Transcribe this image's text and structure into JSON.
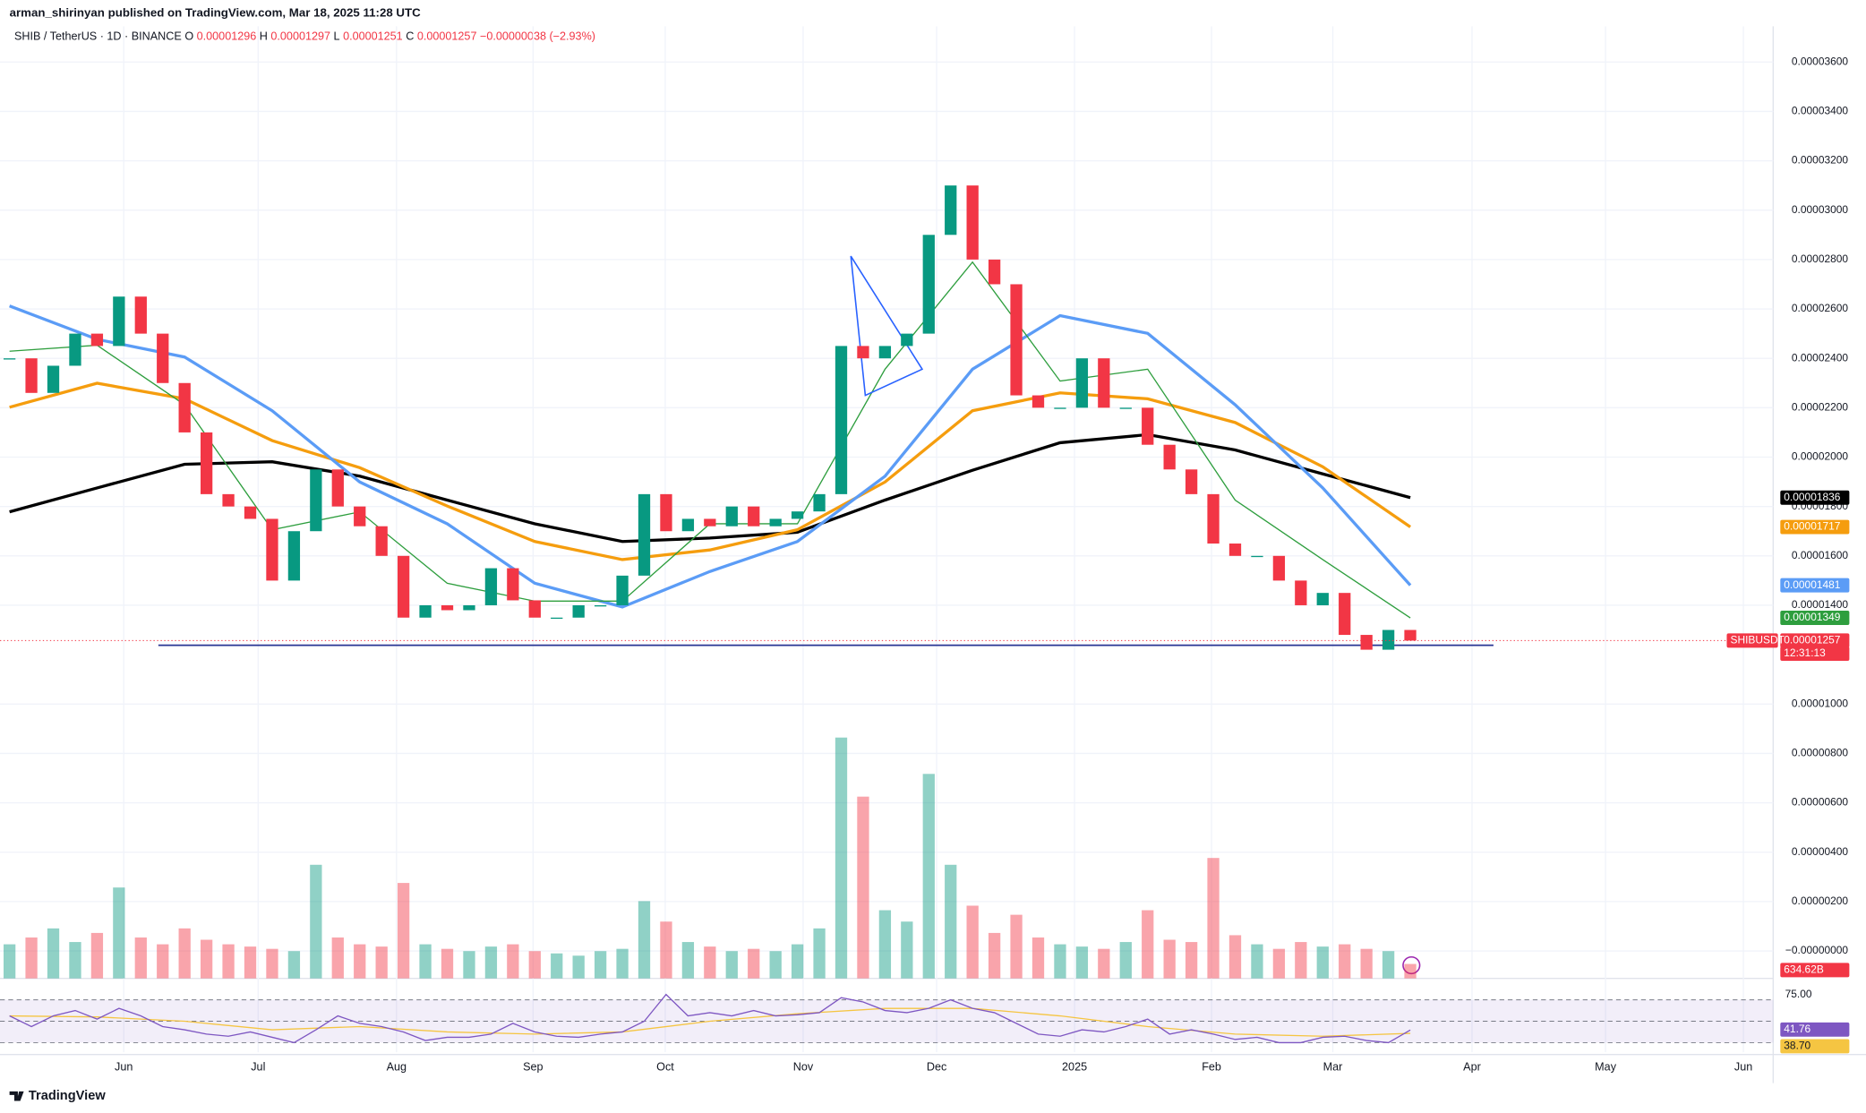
{
  "header": {
    "publisher": "arman_shirinyan published on TradingView.com, Mar 18, 2025 11:28 UTC"
  },
  "chart_data": {
    "type": "candlestick",
    "symbol": "SHIB / TetherUS · 1D · BINANCE",
    "ohlc": [
      {
        "key": "O",
        "value": 1.296e-05
      },
      {
        "key": "H",
        "value": 1.297e-05
      },
      {
        "key": "L",
        "value": 1.251e-05
      },
      {
        "key": "C",
        "value": 1.257e-05
      }
    ],
    "change_label": "−0.00000038 (−2.93%)",
    "symbol_tag": "SHIBUSDT",
    "countdown": "12:31:13",
    "x": [
      0,
      5,
      10,
      15,
      20,
      25,
      30,
      35,
      40,
      45,
      50,
      55,
      60,
      65,
      70,
      75,
      80,
      85,
      90,
      95,
      100,
      105,
      110,
      115,
      120,
      125,
      130,
      135,
      140,
      145,
      150,
      155,
      160,
      165,
      170,
      175,
      180,
      185,
      190,
      195,
      200,
      205,
      210,
      215,
      220,
      225,
      230,
      235,
      240,
      245,
      250,
      255,
      260,
      265,
      270,
      275,
      280,
      285,
      290,
      295,
      300,
      305,
      310,
      315,
      320
    ],
    "close": [
      2.4e-05,
      2.26e-05,
      2.37e-05,
      2.5e-05,
      2.45e-05,
      2.65e-05,
      2.5e-05,
      2.3e-05,
      2.1e-05,
      1.85e-05,
      1.8e-05,
      1.75e-05,
      1.5e-05,
      1.7e-05,
      1.95e-05,
      1.8e-05,
      1.72e-05,
      1.6e-05,
      1.35e-05,
      1.4e-05,
      1.38e-05,
      1.4e-05,
      1.55e-05,
      1.42e-05,
      1.35e-05,
      1.35e-05,
      1.4e-05,
      1.4e-05,
      1.52e-05,
      1.85e-05,
      1.7e-05,
      1.75e-05,
      1.72e-05,
      1.8e-05,
      1.72e-05,
      1.75e-05,
      1.78e-05,
      1.85e-05,
      2.45e-05,
      2.4e-05,
      2.45e-05,
      2.5e-05,
      2.9e-05,
      3.1e-05,
      2.8e-05,
      2.7e-05,
      2.25e-05,
      2.2e-05,
      2.2e-05,
      2.4e-05,
      2.2e-05,
      2.2e-05,
      2.05e-05,
      1.95e-05,
      1.85e-05,
      1.65e-05,
      1.6e-05,
      1.6e-05,
      1.5e-05,
      1.4e-05,
      1.45e-05,
      1.28e-05,
      1.22e-05,
      1.3e-05,
      1.257e-05
    ],
    "up_color": "#089981",
    "down_color": "#f23645",
    "xlim": [
      0,
      402.9
    ],
    "xticks": [
      {
        "value": 26.1,
        "label": "Jun"
      },
      {
        "value": 56.8,
        "label": "Jul"
      },
      {
        "value": 88.4,
        "label": "Aug"
      },
      {
        "value": 119.6,
        "label": "Sep"
      },
      {
        "value": 149.8,
        "label": "Oct"
      },
      {
        "value": 181.3,
        "label": "Nov"
      },
      {
        "value": 211.8,
        "label": "Dec"
      },
      {
        "value": 243.3,
        "label": "2025"
      },
      {
        "value": 274.6,
        "label": "Feb"
      },
      {
        "value": 302.3,
        "label": "Mar"
      },
      {
        "value": 334.1,
        "label": "Apr"
      },
      {
        "value": 364.6,
        "label": "May"
      },
      {
        "value": 396.1,
        "label": "Jun"
      }
    ],
    "ylim": [
      -1.11e-06,
      3.706e-05
    ],
    "yticks": [
      {
        "value": 3.6e-05,
        "label": "0.00003600"
      },
      {
        "value": 3.4e-05,
        "label": "0.00003400"
      },
      {
        "value": 3.2e-05,
        "label": "0.00003200"
      },
      {
        "value": 3e-05,
        "label": "0.00003000"
      },
      {
        "value": 2.8e-05,
        "label": "0.00002800"
      },
      {
        "value": 2.6e-05,
        "label": "0.00002600"
      },
      {
        "value": 2.4e-05,
        "label": "0.00002400"
      },
      {
        "value": 2.2e-05,
        "label": "0.00002200"
      },
      {
        "value": 2e-05,
        "label": "0.00002000"
      },
      {
        "value": 1.8e-05,
        "label": "0.00001800"
      },
      {
        "value": 1.6e-05,
        "label": "0.00001600"
      },
      {
        "value": 1.4e-05,
        "label": "0.00001400"
      },
      {
        "value": 1e-05,
        "label": "0.00001000"
      },
      {
        "value": 8e-06,
        "label": "0.00000800"
      },
      {
        "value": 6e-06,
        "label": "0.00000600"
      },
      {
        "value": 4e-06,
        "label": "0.00000400"
      },
      {
        "value": 2e-06,
        "label": "0.00000200"
      },
      {
        "value": 0,
        "label": "−0.00000000"
      }
    ],
    "grid": true,
    "ma_x": [
      0,
      20,
      40,
      60,
      80,
      100,
      120,
      140,
      160,
      180,
      200,
      220,
      240,
      260,
      280,
      300,
      320
    ],
    "ma_lines": [
      {
        "color": "#000000",
        "values": [
          1.778e-05,
          1.875e-05,
          1.971e-05,
          1.981e-05,
          1.923e-05,
          1.826e-05,
          1.73e-05,
          1.658e-05,
          1.672e-05,
          1.696e-05,
          1.826e-05,
          1.947e-05,
          2.058e-05,
          2.091e-05,
          2.029e-05,
          1.932e-05,
          1.836e-05
        ]
      },
      {
        "color": "#f59d0e",
        "values": [
          2.202e-05,
          2.299e-05,
          2.236e-05,
          2.067e-05,
          1.957e-05,
          1.802e-05,
          1.658e-05,
          1.585e-05,
          1.624e-05,
          1.706e-05,
          1.899e-05,
          2.188e-05,
          2.26e-05,
          2.236e-05,
          2.14e-05,
          1.961e-05,
          1.717e-05
        ]
      },
      {
        "color": "#5b9cf6",
        "values": [
          2.612e-05,
          2.477e-05,
          2.405e-05,
          2.188e-05,
          1.899e-05,
          1.73e-05,
          1.489e-05,
          1.393e-05,
          1.537e-05,
          1.658e-05,
          1.923e-05,
          2.356e-05,
          2.573e-05,
          2.501e-05,
          2.212e-05,
          1.875e-05,
          1.481e-05
        ]
      },
      {
        "color": "#2e9e3e",
        "values": [
          2.429e-05,
          2.453e-05,
          2.212e-05,
          1.706e-05,
          1.778e-05,
          1.489e-05,
          1.417e-05,
          1.417e-05,
          1.73e-05,
          1.73e-05,
          2.356e-05,
          2.79e-05,
          2.308e-05,
          2.356e-05,
          1.826e-05,
          1.585e-05,
          1.349e-05
        ]
      }
    ],
    "support_line": {
      "color": "#283593",
      "y": 1.238e-05,
      "x": [
        34,
        339
      ]
    },
    "triangle": {
      "color": "#2962ff",
      "x": [
        192.2,
        208.5,
        195.5
      ],
      "y": [
        2.814e-05,
        2.356e-05,
        2.25e-05
      ]
    },
    "volume": {
      "values": [
        1500,
        1800,
        2200,
        1600,
        2000,
        4000,
        1800,
        1500,
        2200,
        1700,
        1500,
        1400,
        1300,
        1200,
        5000,
        1800,
        1500,
        1400,
        4200,
        1500,
        1300,
        1200,
        1400,
        1500,
        1200,
        1100,
        1000,
        1200,
        1300,
        3400,
        2500,
        1600,
        1400,
        1200,
        1300,
        1200,
        1500,
        2200,
        10600,
        8000,
        3000,
        2500,
        9000,
        5000,
        3200,
        2000,
        2800,
        1800,
        1500,
        1400,
        1300,
        1600,
        3000,
        1700,
        1600,
        5300,
        1900,
        1500,
        1300,
        1600,
        1400,
        1500,
        1300,
        1200,
        634.62
      ],
      "vlim": [
        0,
        11000
      ],
      "last_label": "634.62B"
    },
    "rsi": {
      "color": "#7e57c2",
      "values": [
        55,
        45,
        55,
        60,
        52,
        62,
        55,
        45,
        42,
        38,
        36,
        40,
        35,
        30,
        42,
        55,
        48,
        45,
        40,
        32,
        35,
        35,
        38,
        48,
        40,
        36,
        35,
        38,
        40,
        50,
        75,
        55,
        58,
        55,
        60,
        55,
        56,
        58,
        72,
        68,
        60,
        58,
        62,
        70,
        62,
        58,
        48,
        38,
        36,
        42,
        40,
        45,
        52,
        38,
        42,
        38,
        33,
        35,
        30,
        30,
        35,
        36,
        32,
        30,
        41.76
      ],
      "ylim": [
        21.1,
        85.6
      ],
      "yticks": [
        {
          "value": 75,
          "label": "75.00"
        }
      ],
      "bands": [
        30,
        50,
        70
      ]
    },
    "rsi_ma": {
      "color": "#f5c542",
      "values": [
        55,
        54,
        50,
        42,
        45,
        40,
        38,
        40,
        50,
        57,
        62,
        62,
        55,
        45,
        38,
        36,
        38.7
      ],
      "last_label": "38.70"
    }
  },
  "footer": {
    "brand": "TradingView"
  }
}
